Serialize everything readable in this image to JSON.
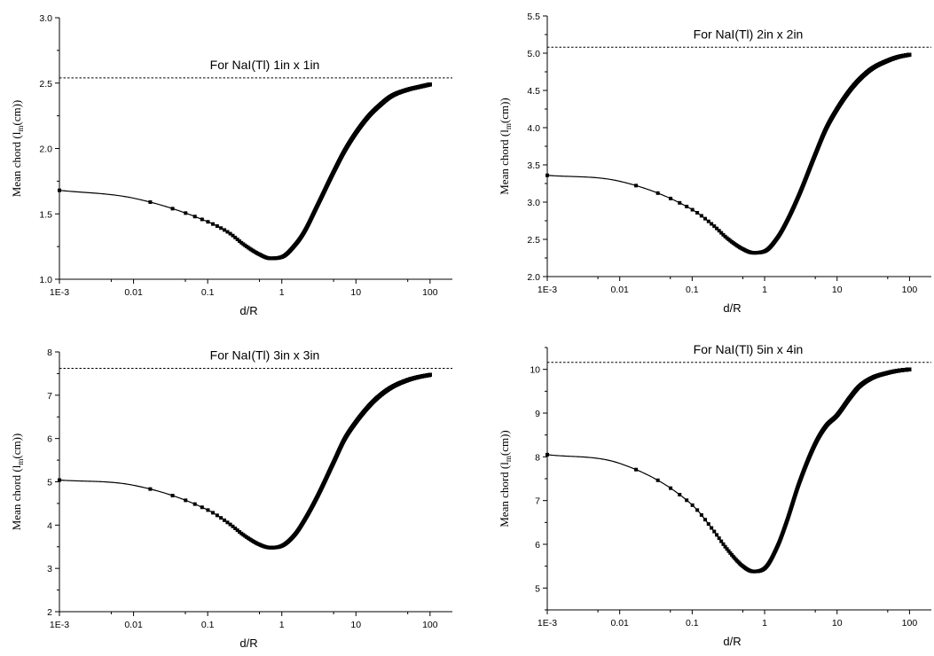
{
  "chart_data": [
    {
      "type": "scatter",
      "title": "For NaI(Tl) 1in x 1in",
      "xlabel": "d/R",
      "ylabel_main": "Mean chord (l",
      "ylabel_sub": "m",
      "ylabel_tail": "(cm))",
      "xscale": "log",
      "xlim": [
        0.001,
        200
      ],
      "ylim": [
        1.0,
        3.0
      ],
      "xticks": [
        {
          "value": 0.001,
          "label": "1E-3"
        },
        {
          "value": 0.01,
          "label": "0.01"
        },
        {
          "value": 0.1,
          "label": "0.1"
        },
        {
          "value": 1,
          "label": "1"
        },
        {
          "value": 10,
          "label": "10"
        },
        {
          "value": 100,
          "label": "100"
        }
      ],
      "yticks": [
        {
          "value": 1.0,
          "label": "1.0"
        },
        {
          "value": 1.5,
          "label": "1.5"
        },
        {
          "value": 2.0,
          "label": "2.0"
        },
        {
          "value": 2.5,
          "label": "2.5"
        },
        {
          "value": 3.0,
          "label": "3.0"
        }
      ],
      "reference_line": 2.54,
      "series": [
        {
          "x": [
            0.001,
            0.01,
            0.1,
            0.2,
            0.3,
            0.5,
            0.7,
            1.0,
            1.5,
            2,
            3,
            5,
            7,
            10,
            15,
            20,
            30,
            50,
            70,
            100
          ],
          "y": [
            1.68,
            1.62,
            1.44,
            1.35,
            1.27,
            1.19,
            1.16,
            1.17,
            1.26,
            1.36,
            1.56,
            1.82,
            1.98,
            2.12,
            2.25,
            2.32,
            2.4,
            2.45,
            2.47,
            2.49
          ]
        }
      ]
    },
    {
      "type": "scatter",
      "title": "For NaI(Tl) 2in x 2in",
      "xlabel": "d/R",
      "ylabel_main": "Mean chord (l",
      "ylabel_sub": "m",
      "ylabel_tail": "(cm))",
      "xscale": "log",
      "xlim": [
        0.001,
        200
      ],
      "ylim": [
        2.0,
        5.5
      ],
      "xticks": [
        {
          "value": 0.001,
          "label": "1E-3"
        },
        {
          "value": 0.01,
          "label": "0.01"
        },
        {
          "value": 0.1,
          "label": "0.1"
        },
        {
          "value": 1,
          "label": "1"
        },
        {
          "value": 10,
          "label": "10"
        },
        {
          "value": 100,
          "label": "100"
        }
      ],
      "yticks": [
        {
          "value": 2.0,
          "label": "2.0"
        },
        {
          "value": 2.5,
          "label": "2.5"
        },
        {
          "value": 3.0,
          "label": "3.0"
        },
        {
          "value": 3.5,
          "label": "3.5"
        },
        {
          "value": 4.0,
          "label": "4.0"
        },
        {
          "value": 4.5,
          "label": "4.5"
        },
        {
          "value": 5.0,
          "label": "5.0"
        },
        {
          "value": 5.5,
          "label": "5.5"
        }
      ],
      "reference_line": 5.08,
      "series": [
        {
          "x": [
            0.001,
            0.01,
            0.1,
            0.2,
            0.3,
            0.5,
            0.7,
            1.0,
            1.5,
            2,
            3,
            5,
            7,
            10,
            15,
            20,
            30,
            50,
            70,
            100
          ],
          "y": [
            3.36,
            3.28,
            2.9,
            2.68,
            2.52,
            2.37,
            2.32,
            2.34,
            2.52,
            2.73,
            3.1,
            3.64,
            3.98,
            4.25,
            4.5,
            4.64,
            4.79,
            4.9,
            4.95,
            4.98
          ]
        }
      ]
    },
    {
      "type": "scatter",
      "title": "For NaI(Tl) 3in x 3in",
      "xlabel": "d/R",
      "ylabel_main": "Mean chord (l",
      "ylabel_sub": "m",
      "ylabel_tail": "(cm))",
      "xscale": "log",
      "xlim": [
        0.001,
        200
      ],
      "ylim": [
        2,
        8
      ],
      "xticks": [
        {
          "value": 0.001,
          "label": "1E-3"
        },
        {
          "value": 0.01,
          "label": "0.01"
        },
        {
          "value": 0.1,
          "label": "0.1"
        },
        {
          "value": 1,
          "label": "1"
        },
        {
          "value": 10,
          "label": "10"
        },
        {
          "value": 100,
          "label": "100"
        }
      ],
      "yticks": [
        {
          "value": 2,
          "label": "2"
        },
        {
          "value": 3,
          "label": "3"
        },
        {
          "value": 4,
          "label": "4"
        },
        {
          "value": 5,
          "label": "5"
        },
        {
          "value": 6,
          "label": "6"
        },
        {
          "value": 7,
          "label": "7"
        },
        {
          "value": 8,
          "label": "8"
        }
      ],
      "reference_line": 7.62,
      "series": [
        {
          "x": [
            0.001,
            0.01,
            0.1,
            0.2,
            0.3,
            0.5,
            0.7,
            1.0,
            1.5,
            2,
            3,
            5,
            7,
            10,
            15,
            20,
            30,
            50,
            70,
            100
          ],
          "y": [
            5.04,
            4.92,
            4.35,
            4.02,
            3.78,
            3.55,
            3.48,
            3.52,
            3.78,
            4.1,
            4.65,
            5.45,
            5.98,
            6.38,
            6.75,
            6.96,
            7.18,
            7.35,
            7.42,
            7.47
          ]
        }
      ]
    },
    {
      "type": "scatter",
      "title": "For NaI(Tl) 5in x 4in",
      "xlabel": "d/R",
      "ylabel_main": "Mean chord (l",
      "ylabel_sub": "m",
      "ylabel_tail": "(cm))",
      "xscale": "log",
      "xlim": [
        0.001,
        200
      ],
      "ylim": [
        4.5,
        10.5
      ],
      "xticks": [
        {
          "value": 0.001,
          "label": "1E-3"
        },
        {
          "value": 0.01,
          "label": "0.01"
        },
        {
          "value": 0.1,
          "label": "0.1"
        },
        {
          "value": 1,
          "label": "1"
        },
        {
          "value": 10,
          "label": "10"
        },
        {
          "value": 100,
          "label": "100"
        }
      ],
      "yticks": [
        {
          "value": 5,
          "label": "5"
        },
        {
          "value": 6,
          "label": "6"
        },
        {
          "value": 7,
          "label": "7"
        },
        {
          "value": 8,
          "label": "8"
        },
        {
          "value": 9,
          "label": "9"
        },
        {
          "value": 10,
          "label": "10"
        }
      ],
      "reference_line": 10.16,
      "series": [
        {
          "x": [
            0.001,
            0.01,
            0.1,
            0.2,
            0.3,
            0.5,
            0.7,
            1.0,
            1.5,
            2,
            3,
            5,
            7,
            10,
            15,
            20,
            30,
            50,
            70,
            100
          ],
          "y": [
            8.05,
            7.85,
            6.9,
            6.3,
            5.9,
            5.5,
            5.38,
            5.45,
            5.95,
            6.5,
            7.4,
            8.3,
            8.7,
            8.95,
            9.35,
            9.6,
            9.8,
            9.92,
            9.97,
            10.0
          ]
        }
      ]
    }
  ]
}
